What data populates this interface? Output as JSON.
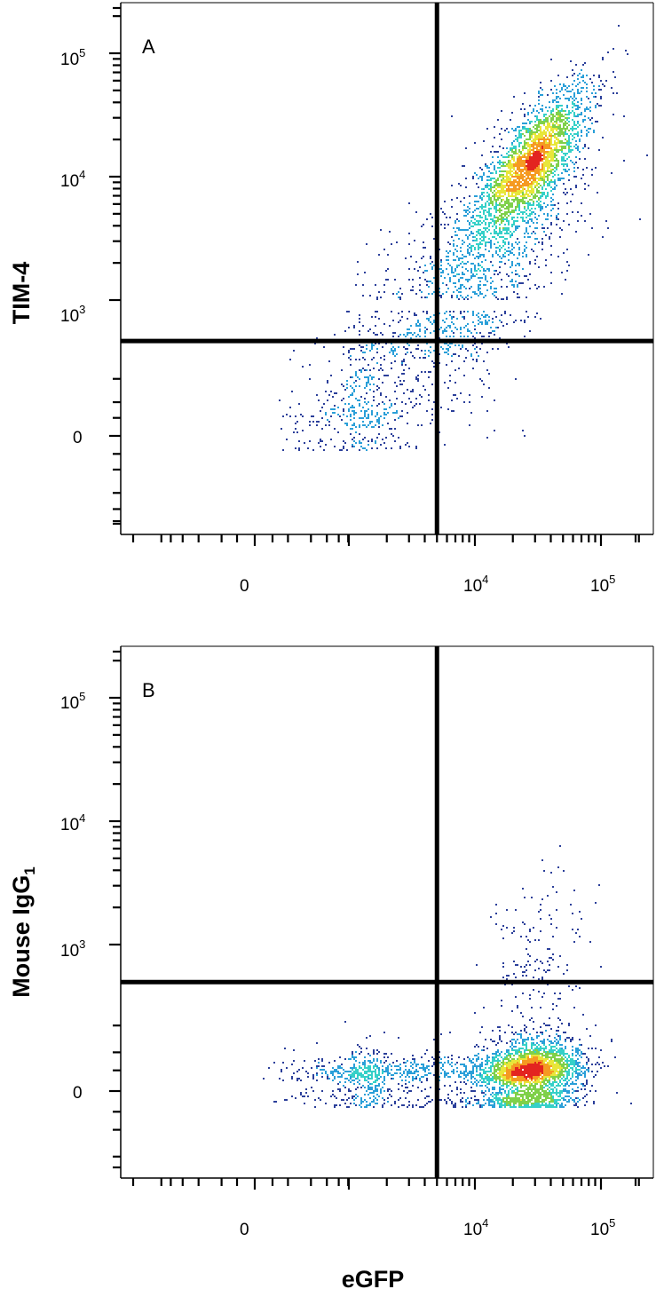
{
  "chart_data": [
    {
      "type": "scatter",
      "panel_label": "A",
      "xlabel": "",
      "ylabel": "TIM-4",
      "x_scale": "biexponential",
      "y_scale": "biexponential",
      "x_tick_labels": [
        {
          "base": "",
          "exp": "",
          "text": "0",
          "value": 0
        },
        {
          "base": "10",
          "exp": "4",
          "text": "",
          "value": 10000
        },
        {
          "base": "10",
          "exp": "5",
          "text": "",
          "value": 100000
        }
      ],
      "y_tick_labels": [
        {
          "base": "",
          "exp": "",
          "text": "0",
          "value": 0
        },
        {
          "base": "10",
          "exp": "3",
          "text": "",
          "value": 1000
        },
        {
          "base": "10",
          "exp": "4",
          "text": "",
          "value": 10000
        },
        {
          "base": "10",
          "exp": "5",
          "text": "",
          "value": 100000
        }
      ],
      "quadrant_gate": {
        "x": 5000,
        "y": 500
      },
      "populations": [
        {
          "count": 2600,
          "mean": [
            28000,
            13000
          ],
          "spread_decades": [
            0.22,
            0.3
          ],
          "correlation": 0.75
        },
        {
          "count": 1100,
          "mean": [
            12000,
            2200
          ],
          "spread_decades": [
            0.4,
            0.45
          ],
          "correlation": 0.6
        },
        {
          "count": 650,
          "mean": [
            1500,
            200
          ],
          "spread_decades": [
            0.55,
            0.5
          ],
          "correlation": 0.55
        }
      ],
      "density_colors": [
        "#2b3f9a",
        "#2a9fd8",
        "#35d0c8",
        "#7fd04a",
        "#e8e63a",
        "#f59a22",
        "#e32420"
      ],
      "grid": false
    },
    {
      "type": "scatter",
      "panel_label": "B",
      "xlabel": "eGFP",
      "ylabel": "Mouse IgG",
      "ylabel_subscript": "1",
      "x_scale": "biexponential",
      "y_scale": "biexponential",
      "x_tick_labels": [
        {
          "base": "",
          "exp": "",
          "text": "0",
          "value": 0
        },
        {
          "base": "10",
          "exp": "4",
          "text": "",
          "value": 10000
        },
        {
          "base": "10",
          "exp": "5",
          "text": "",
          "value": 100000
        }
      ],
      "y_tick_labels": [
        {
          "base": "",
          "exp": "",
          "text": "0",
          "value": 0
        },
        {
          "base": "10",
          "exp": "3",
          "text": "",
          "value": 1000
        },
        {
          "base": "10",
          "exp": "4",
          "text": "",
          "value": 10000
        },
        {
          "base": "10",
          "exp": "5",
          "text": "",
          "value": 100000
        }
      ],
      "quadrant_gate": {
        "x": 5000,
        "y": 500
      },
      "populations": [
        {
          "count": 2800,
          "mean": [
            28000,
            60
          ],
          "spread_decades": [
            0.2,
            0.22
          ],
          "correlation": 0.2
        },
        {
          "count": 900,
          "mean": [
            1800,
            50
          ],
          "spread_decades": [
            0.6,
            0.18
          ],
          "correlation": 0.0
        },
        {
          "count": 160,
          "mean": [
            30000,
            700
          ],
          "spread_decades": [
            0.2,
            0.35
          ],
          "correlation": 0.3
        }
      ],
      "density_colors": [
        "#2b3f9a",
        "#2a9fd8",
        "#35d0c8",
        "#7fd04a",
        "#e8e63a",
        "#f59a22",
        "#e32420"
      ],
      "grid": false
    }
  ]
}
